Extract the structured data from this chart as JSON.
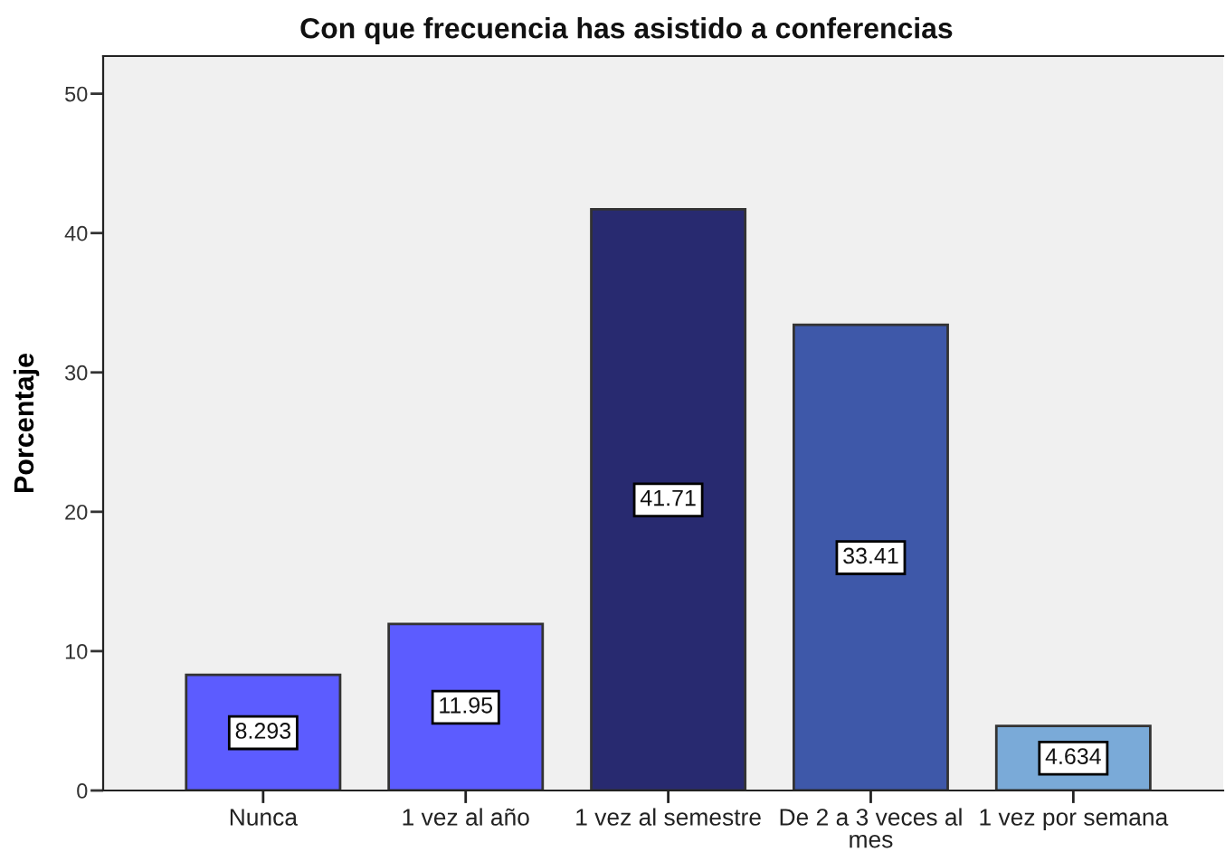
{
  "chart_data": {
    "type": "bar",
    "title": "Con que frecuencia has asistido a conferencias",
    "ylabel": "Porcentaje",
    "categories": [
      "Nunca",
      "1 vez al año",
      "1 vez al semestre",
      "De 2 a 3 veces al mes",
      "1 vez por semana"
    ],
    "values": [
      8.293,
      11.95,
      41.71,
      33.41,
      4.634
    ],
    "colors": [
      "#5c5cff",
      "#5c5cff",
      "#282a70",
      "#3e58a9",
      "#7aaad8"
    ],
    "ylim": [
      0,
      52.7
    ],
    "yticks": [
      0,
      10,
      20,
      30,
      40,
      50
    ],
    "data_labels": true,
    "grid": false,
    "legend": false
  }
}
